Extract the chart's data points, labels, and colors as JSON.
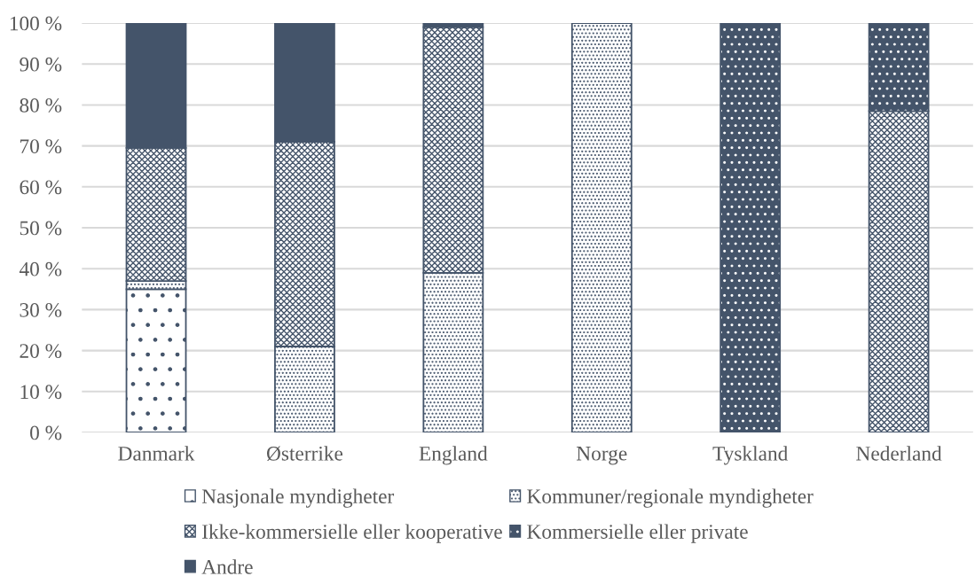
{
  "chart_data": {
    "type": "bar",
    "stacked": true,
    "categories": [
      "Danmark",
      "Østerrike",
      "England",
      "Norge",
      "Tyskland",
      "Nederland"
    ],
    "series": [
      {
        "name": "Nasjonale myndigheter",
        "color": "#44546a",
        "values": [
          35,
          null,
          null,
          null,
          null,
          null
        ]
      },
      {
        "name": "Kommuner/regionale myndigheter",
        "color": "#44546a",
        "values": [
          2,
          21,
          39,
          100,
          null,
          null
        ]
      },
      {
        "name": "Ikke-kommersielle eller kooperative",
        "color": "#44546a",
        "values": [
          32.5,
          50,
          60,
          null,
          null,
          78.5
        ]
      },
      {
        "name": "Kommersielle eller private",
        "color": "#44546a",
        "values": [
          null,
          null,
          null,
          null,
          100,
          21.5
        ]
      },
      {
        "name": "Andre",
        "color": "#44546a",
        "values": [
          30.5,
          29,
          1,
          null,
          null,
          null
        ]
      }
    ],
    "ylim": [
      0,
      100
    ],
    "yticks": [
      {
        "value": 0,
        "label": "0 %"
      },
      {
        "value": 10,
        "label": "10 %"
      },
      {
        "value": 20,
        "label": "20 %"
      },
      {
        "value": 30,
        "label": "30 %"
      },
      {
        "value": 40,
        "label": "40 %"
      },
      {
        "value": 50,
        "label": "50 %"
      },
      {
        "value": 60,
        "label": "60 %"
      },
      {
        "value": 70,
        "label": "70 %"
      },
      {
        "value": 80,
        "label": "80 %"
      },
      {
        "value": 90,
        "label": "90 %"
      },
      {
        "value": 100,
        "label": "100 %"
      }
    ],
    "grid": "y",
    "legend": "bottom"
  }
}
